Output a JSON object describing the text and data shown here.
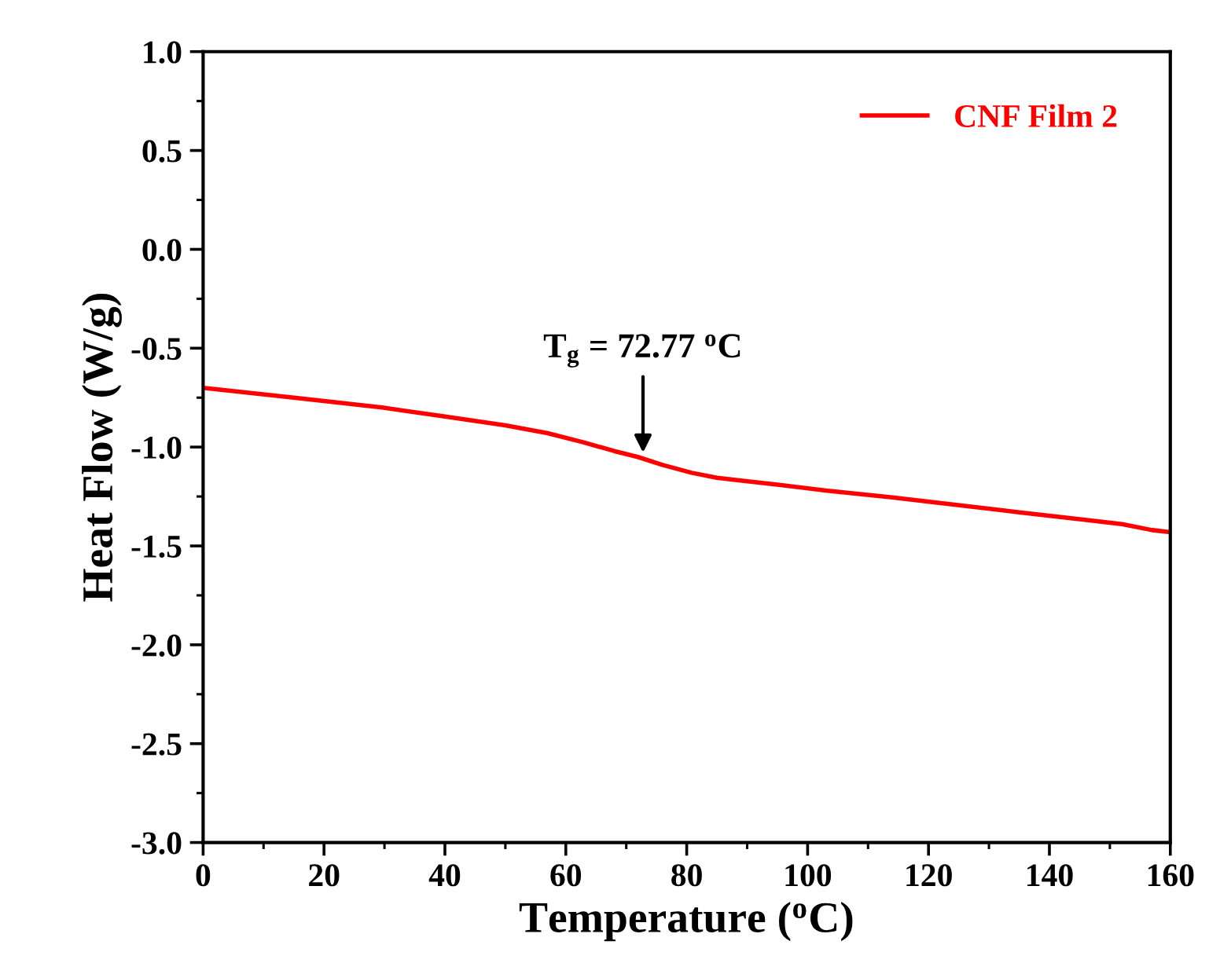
{
  "chart_data": {
    "type": "line",
    "xlabel": "Temperature ($^{o}$C)",
    "ylabel": "Heat Flow (W/g)",
    "x": [
      0,
      15,
      29.6,
      40,
      50,
      57,
      62.8,
      68,
      71.9,
      76,
      80.8,
      85,
      89.2,
      95,
      103,
      114,
      124,
      135,
      145,
      152,
      157,
      160
    ],
    "xlim": [
      0,
      160
    ],
    "xticks": [
      0,
      20,
      40,
      60,
      80,
      100,
      120,
      140,
      160
    ],
    "ylim": [
      -3.0,
      1.0
    ],
    "yticks": [
      {
        "value": -3.0,
        "label": "-3.0"
      },
      {
        "value": -2.5,
        "label": "-2.5"
      },
      {
        "value": -2.0,
        "label": "-2.0"
      },
      {
        "value": -1.5,
        "label": "-1.5"
      },
      {
        "value": -1.0,
        "label": "-1.0"
      },
      {
        "value": -0.5,
        "label": "-0.5"
      },
      {
        "value": 0.0,
        "label": "0.0"
      },
      {
        "value": 0.5,
        "label": "0.5"
      },
      {
        "value": 1.0,
        "label": "1.0"
      }
    ],
    "series": [
      {
        "name": "CNF Film 2",
        "color": "#ff0000",
        "values": [
          -0.7,
          -0.75,
          -0.8,
          -0.845,
          -0.89,
          -0.93,
          -0.975,
          -1.02,
          -1.05,
          -1.09,
          -1.13,
          -1.155,
          -1.17,
          -1.19,
          -1.22,
          -1.255,
          -1.29,
          -1.33,
          -1.365,
          -1.39,
          -1.42,
          -1.43
        ]
      }
    ],
    "annotations": [
      {
        "text": "T$_{g}$ = 72.77 $^{o}$C",
        "x": 72.77,
        "y": -1.05
      }
    ],
    "legend": "top right",
    "grid": false,
    "marker": "none",
    "line_style": "solid"
  }
}
